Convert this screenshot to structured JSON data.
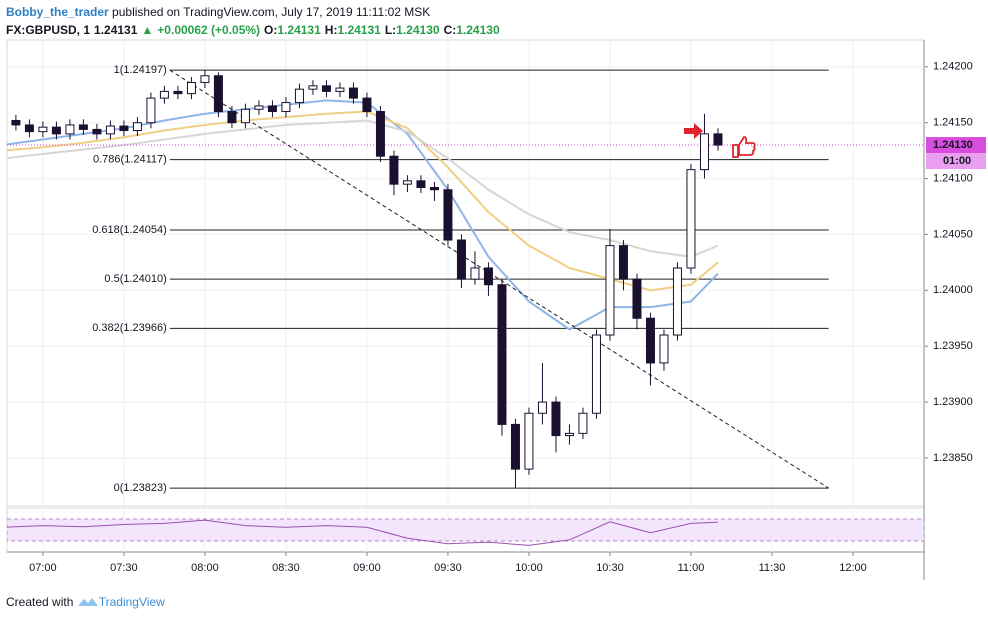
{
  "header": {
    "author": "Bobby_the_trader",
    "published": "published on TradingView.com, July 17, 2019 11:11:02 MSK",
    "quote": [
      {
        "text": "FX:GBPUSD, 1",
        "color": "#131722"
      },
      {
        "text": "1.24131",
        "color": "#131722"
      },
      {
        "text": "▲",
        "color": "#26a148"
      },
      {
        "text": "+0.00062 (+0.05%)",
        "color": "#26a148"
      },
      {
        "text": "O:",
        "color": "#131722"
      },
      {
        "text": "1.24131",
        "color": "#26a148"
      },
      {
        "text": "H:",
        "color": "#131722"
      },
      {
        "text": "1.24131",
        "color": "#26a148"
      },
      {
        "text": "L:",
        "color": "#131722"
      },
      {
        "text": "1.24130",
        "color": "#26a148"
      },
      {
        "text": "C:",
        "color": "#131722"
      },
      {
        "text": "1.24130",
        "color": "#26a148"
      }
    ]
  },
  "footer": {
    "prefix": "Created with",
    "brand": "TradingView"
  },
  "chart_data": {
    "type": "candlestick",
    "grid": true,
    "up_color": "#ffffff",
    "down_color": "#1b1030",
    "outline_color": "#1b1030",
    "xlim": [
      406.7,
      746.3
    ],
    "ylim": [
      1.23807,
      1.24224
    ],
    "xticks": [
      {
        "value": 420,
        "label": "07:00"
      },
      {
        "value": 450,
        "label": "07:30"
      },
      {
        "value": 480,
        "label": "08:00"
      },
      {
        "value": 510,
        "label": "08:30"
      },
      {
        "value": 540,
        "label": "09:00"
      },
      {
        "value": 570,
        "label": "09:30"
      },
      {
        "value": 600,
        "label": "10:00"
      },
      {
        "value": 630,
        "label": "10:30"
      },
      {
        "value": 660,
        "label": "11:00"
      },
      {
        "value": 690,
        "label": "11:30"
      },
      {
        "value": 720,
        "label": "12:00"
      }
    ],
    "yticks": [
      {
        "value": 1.2385,
        "label": "1.23850"
      },
      {
        "value": 1.239,
        "label": "1.23900"
      },
      {
        "value": 1.2395,
        "label": "1.23950"
      },
      {
        "value": 1.24,
        "label": "1.24000"
      },
      {
        "value": 1.2405,
        "label": "1.24050"
      },
      {
        "value": 1.241,
        "label": "1.24100"
      },
      {
        "value": 1.2415,
        "label": "1.24150"
      },
      {
        "value": 1.242,
        "label": "1.24200"
      }
    ],
    "x": [
      405,
      410,
      415,
      420,
      425,
      430,
      435,
      440,
      445,
      450,
      455,
      460,
      465,
      470,
      475,
      480,
      485,
      490,
      495,
      500,
      505,
      510,
      515,
      520,
      525,
      530,
      535,
      540,
      545,
      550,
      555,
      560,
      565,
      570,
      575,
      580,
      585,
      590,
      595,
      600,
      605,
      610,
      615,
      620,
      625,
      630,
      635,
      640,
      645,
      650,
      655,
      660,
      665,
      670
    ],
    "open": [
      1.24155,
      1.24152,
      1.24148,
      1.24142,
      1.24146,
      1.2414,
      1.24148,
      1.24144,
      1.2414,
      1.24147,
      1.24143,
      1.2415,
      1.24172,
      1.24178,
      1.24176,
      1.24186,
      1.24192,
      1.2416,
      1.2415,
      1.24162,
      1.24165,
      1.2416,
      1.24168,
      1.2418,
      1.24183,
      1.24178,
      1.24181,
      1.24172,
      1.2416,
      1.2412,
      1.24095,
      1.24098,
      1.24092,
      1.2409,
      1.24045,
      1.2401,
      1.2402,
      1.24005,
      1.2388,
      1.2384,
      1.2389,
      1.239,
      1.2387,
      1.23872,
      1.2389,
      1.2396,
      1.2404,
      1.2401,
      1.23975,
      1.23935,
      1.2396,
      1.2402,
      1.24108,
      1.2414
    ],
    "high": [
      1.2416,
      1.24157,
      1.24153,
      1.24151,
      1.24151,
      1.24153,
      1.24153,
      1.24149,
      1.24152,
      1.24152,
      1.24155,
      1.24177,
      1.24183,
      1.24183,
      1.24191,
      1.24197,
      1.24195,
      1.24165,
      1.24167,
      1.2417,
      1.2417,
      1.24173,
      1.24185,
      1.24188,
      1.24188,
      1.24186,
      1.24186,
      1.24177,
      1.24165,
      1.24125,
      1.24103,
      1.24103,
      1.24097,
      1.24095,
      1.2405,
      1.24035,
      1.24025,
      1.2401,
      1.23885,
      1.23895,
      1.23935,
      1.23905,
      1.2388,
      1.23895,
      1.23965,
      1.24055,
      1.24045,
      1.24015,
      1.2398,
      1.23965,
      1.24025,
      1.24113,
      1.24158,
      1.24145
    ],
    "low": [
      1.24147,
      1.24143,
      1.24137,
      1.24137,
      1.24135,
      1.24135,
      1.24139,
      1.24135,
      1.24135,
      1.24138,
      1.24138,
      1.24145,
      1.24167,
      1.24171,
      1.24171,
      1.24181,
      1.24155,
      1.24145,
      1.24145,
      1.24157,
      1.24155,
      1.24155,
      1.24163,
      1.24175,
      1.24173,
      1.24173,
      1.24167,
      1.24155,
      1.24115,
      1.24085,
      1.24088,
      1.24087,
      1.2408,
      1.2404,
      1.24002,
      1.24005,
      1.23995,
      1.2387,
      1.23823,
      1.23835,
      1.2388,
      1.23855,
      1.23862,
      1.23867,
      1.23885,
      1.23955,
      1.24,
      1.23965,
      1.23915,
      1.23928,
      1.23955,
      1.24015,
      1.241,
      1.24125
    ],
    "close": [
      1.24152,
      1.24148,
      1.24142,
      1.24146,
      1.2414,
      1.24148,
      1.24144,
      1.2414,
      1.24147,
      1.24143,
      1.2415,
      1.24172,
      1.24178,
      1.24176,
      1.24186,
      1.24192,
      1.2416,
      1.2415,
      1.24162,
      1.24165,
      1.2416,
      1.24168,
      1.2418,
      1.24183,
      1.24178,
      1.24181,
      1.24172,
      1.2416,
      1.2412,
      1.24095,
      1.24098,
      1.24092,
      1.2409,
      1.24045,
      1.2401,
      1.2402,
      1.24005,
      1.2388,
      1.2384,
      1.2389,
      1.239,
      1.2387,
      1.23872,
      1.2389,
      1.2396,
      1.2404,
      1.2401,
      1.23975,
      1.23935,
      1.2396,
      1.2402,
      1.24108,
      1.2414,
      1.2413
    ],
    "ma": {
      "x": [
        405,
        420,
        435,
        450,
        465,
        480,
        495,
        510,
        525,
        540,
        555,
        570,
        585,
        600,
        615,
        630,
        645,
        660,
        670
      ],
      "series": [
        {
          "color": "#8fb5e8",
          "values": [
            1.2413,
            1.24135,
            1.2414,
            1.24145,
            1.24152,
            1.24158,
            1.24162,
            1.24166,
            1.2417,
            1.24168,
            1.2414,
            1.2409,
            1.2403,
            1.2399,
            1.23965,
            1.23985,
            1.23985,
            1.2399,
            1.24015
          ]
        },
        {
          "color": "#f0cf83",
          "values": [
            1.24125,
            1.24128,
            1.24132,
            1.24137,
            1.24143,
            1.24148,
            1.24152,
            1.24155,
            1.24158,
            1.2416,
            1.24145,
            1.2411,
            1.2407,
            1.2404,
            1.2402,
            1.2401,
            1.24,
            1.24005,
            1.24025
          ]
        },
        {
          "color": "#d6d6d6",
          "values": [
            1.24118,
            1.24122,
            1.24126,
            1.2413,
            1.24135,
            1.2414,
            1.24144,
            1.24148,
            1.2415,
            1.24152,
            1.24142,
            1.24118,
            1.2409,
            1.24068,
            1.24052,
            1.24045,
            1.24035,
            1.2403,
            1.2404
          ]
        }
      ]
    },
    "fib_levels": [
      {
        "value": 1.24197,
        "label": "1(1.24197)"
      },
      {
        "value": 1.24117,
        "label": "0.786(1.24117)"
      },
      {
        "value": 1.24054,
        "label": "0.618(1.24054)"
      },
      {
        "value": 1.2401,
        "label": "0.5(1.24010)"
      },
      {
        "value": 1.23966,
        "label": "0.382(1.23966)"
      },
      {
        "value": 1.23823,
        "label": "0(1.23823)"
      }
    ],
    "fib_x": [
      467,
      711
    ],
    "trend_line": {
      "x": [
        467,
        711
      ],
      "y": [
        1.24197,
        1.23823
      ]
    },
    "last_price": {
      "value": 1.2413,
      "label": "1.24130",
      "color": "#d84de0"
    },
    "countdown": "01:00",
    "rsi": {
      "color": "#9c4fb0",
      "ylim": [
        10,
        90
      ],
      "band": [
        30,
        70
      ],
      "x": [
        405,
        420,
        435,
        450,
        465,
        480,
        495,
        510,
        525,
        540,
        555,
        570,
        585,
        600,
        615,
        630,
        645,
        660,
        670
      ],
      "values": [
        55,
        58,
        56,
        60,
        62,
        68,
        58,
        55,
        58,
        55,
        35,
        25,
        28,
        22,
        32,
        65,
        45,
        62,
        64
      ]
    }
  }
}
